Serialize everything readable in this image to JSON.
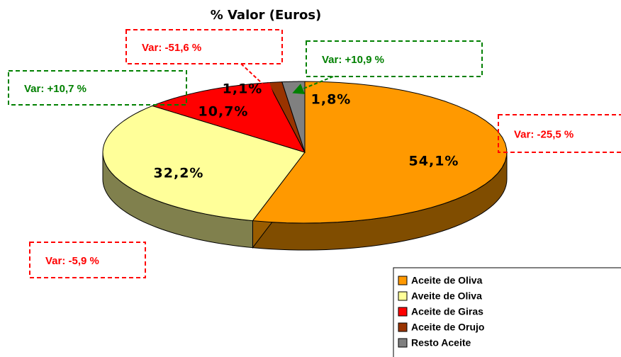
{
  "chart_data": {
    "type": "pie3d",
    "title": "% Valor (Euros)",
    "categories": [
      "Aceite de Oliva",
      "Aveite de Oliva",
      "Aceite de Giras",
      "Aceite de Orujo",
      "Resto Aceite"
    ],
    "values": [
      54.1,
      32.2,
      10.7,
      1.1,
      1.8
    ],
    "value_labels": [
      "54,1%",
      "32,2%",
      "10,7%",
      "1,1%",
      "1,8%"
    ],
    "colors": [
      "#ff9900",
      "#ffff99",
      "#ff0000",
      "#993300",
      "#808080"
    ],
    "annotations": [
      {
        "text": "Var: -25,5 %",
        "color": "#ff0000"
      },
      {
        "text": "Var: -5,9 %",
        "color": "#ff0000"
      },
      {
        "text": "Var: +10,7 %",
        "color": "#008000"
      },
      {
        "text": "Var: -51,6 %",
        "color": "#ff0000"
      },
      {
        "text": "Var: +10,9 %",
        "color": "#008000"
      }
    ]
  }
}
